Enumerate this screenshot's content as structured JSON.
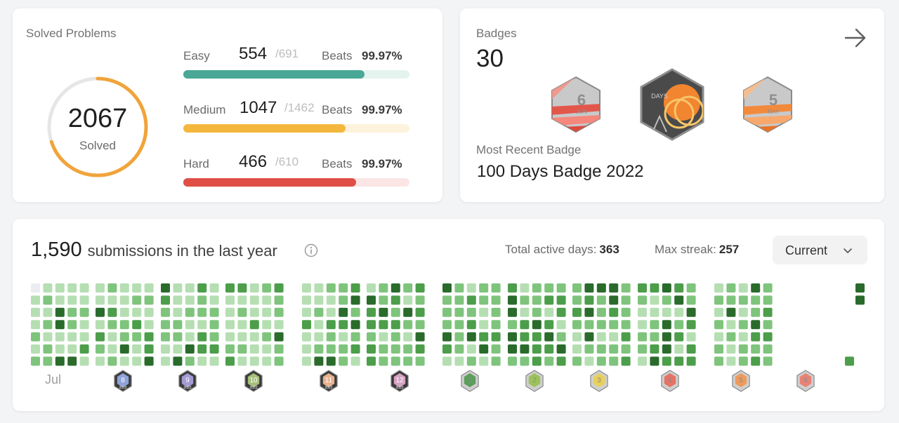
{
  "solved": {
    "title": "Solved Problems",
    "total": "2067",
    "total_label": "Solved",
    "progress": 0.7,
    "ring_color": "#f0a43a",
    "rows": [
      {
        "name": "Easy",
        "count": "554",
        "total": "/691",
        "beats_label": "Beats",
        "beats": "99.97%",
        "fraction": 0.802,
        "color": "#4aa896",
        "track": "#e4f3ee"
      },
      {
        "name": "Medium",
        "count": "1047",
        "total": "/1462",
        "beats_label": "Beats",
        "beats": "99.97%",
        "fraction": 0.716,
        "color": "#f4b73e",
        "track": "#fdf3dd"
      },
      {
        "name": "Hard",
        "count": "466",
        "total": "/610",
        "beats_label": "Beats",
        "beats": "99.97%",
        "fraction": 0.764,
        "color": "#df4f46",
        "track": "#fbe6e5"
      }
    ]
  },
  "badges": {
    "title": "Badges",
    "count": "30",
    "featured": [
      {
        "name": "june-2022-badge",
        "number": "6",
        "month": "JUN"
      },
      {
        "name": "100-days-badge",
        "label": "DAYS"
      },
      {
        "name": "may-2022-badge",
        "number": "5",
        "month": "MAY"
      }
    ],
    "recent_label": "Most Recent Badge",
    "recent_name": "100 Days Badge 2022"
  },
  "calendar": {
    "count": "1,590",
    "text": "submissions in the last year",
    "active_days_label": "Total active days:",
    "active_days": "363",
    "max_streak_label": "Max streak:",
    "max_streak": "257",
    "range_selected": "Current",
    "first_month_label": "Jul",
    "month_badges": [
      {
        "label": "8",
        "year": "2022"
      },
      {
        "label": "9",
        "year": "2022"
      },
      {
        "label": "10",
        "year": "2022"
      },
      {
        "label": "11",
        "year": "2022"
      },
      {
        "label": "12",
        "year": "2022"
      },
      {
        "label": "1",
        "year": ""
      },
      {
        "label": "2",
        "year": ""
      },
      {
        "label": "3",
        "year": ""
      },
      {
        "label": "4",
        "year": ""
      },
      {
        "label": "5",
        "year": ""
      },
      {
        "label": "6",
        "year": ""
      }
    ],
    "colors": {
      "level0": "#ebedf0",
      "level1": "#b5dfb2",
      "level2": "#7fc47c",
      "level3": "#4c9e4a",
      "level4": "#2a6b2c"
    }
  }
}
